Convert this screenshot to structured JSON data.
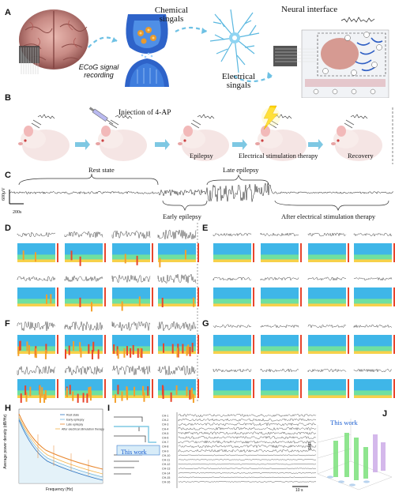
{
  "panel_a": {
    "letter": "A",
    "ecog_label": "ECoG signal recording",
    "chemical_label": "Chemical singals",
    "electrical_label": "Electrical singals",
    "interface_label": "Neural interface"
  },
  "panel_b": {
    "letter": "B",
    "injection_label": "Injection of 4-AP",
    "stages": [
      "Epilepsy",
      "Electrical stimulation therapy",
      "Recovery"
    ]
  },
  "panel_c": {
    "letter": "C",
    "rest_state": "Rest state",
    "late_epilepsy": "Late epilepsy",
    "early_epilepsy": "Early epilepsy",
    "after_therapy": "After electrical stimulation therapy",
    "scale_v": "600μV",
    "scale_t": "200s"
  },
  "panel_letters": {
    "d": "D",
    "e": "E",
    "f": "F",
    "g": "G",
    "h": "H",
    "i": "I",
    "j": "J"
  },
  "panel_h": {
    "ylabel": "Average power density (dB/Hz)",
    "xlabel": "Frequency (Hz)",
    "legend": [
      "Rest state",
      "Early epilepsy",
      "Late epilepsy",
      "After electrical stimulation therapy"
    ]
  },
  "panel_i": {
    "highlight": "This work",
    "channels": [
      "CH-1",
      "CH-2",
      "CH-3",
      "CH-4",
      "CH-5",
      "CH-6",
      "CH-7",
      "CH-8",
      "CH-9",
      "CH-10",
      "CH-11",
      "CH-12",
      "CH-13",
      "CH-14",
      "CH-15",
      "CH-16"
    ],
    "scale_t": "10 s"
  },
  "panel_j": {
    "highlight": "This work",
    "zlabel": "SNR"
  },
  "colors": {
    "accent_blue": "#1c5fd1",
    "dash_blue": "#7ec8e3",
    "highlight_blue": "#2a6bd1",
    "green_bar": "#7be07b",
    "purple_bar": "#c9a6e6"
  }
}
